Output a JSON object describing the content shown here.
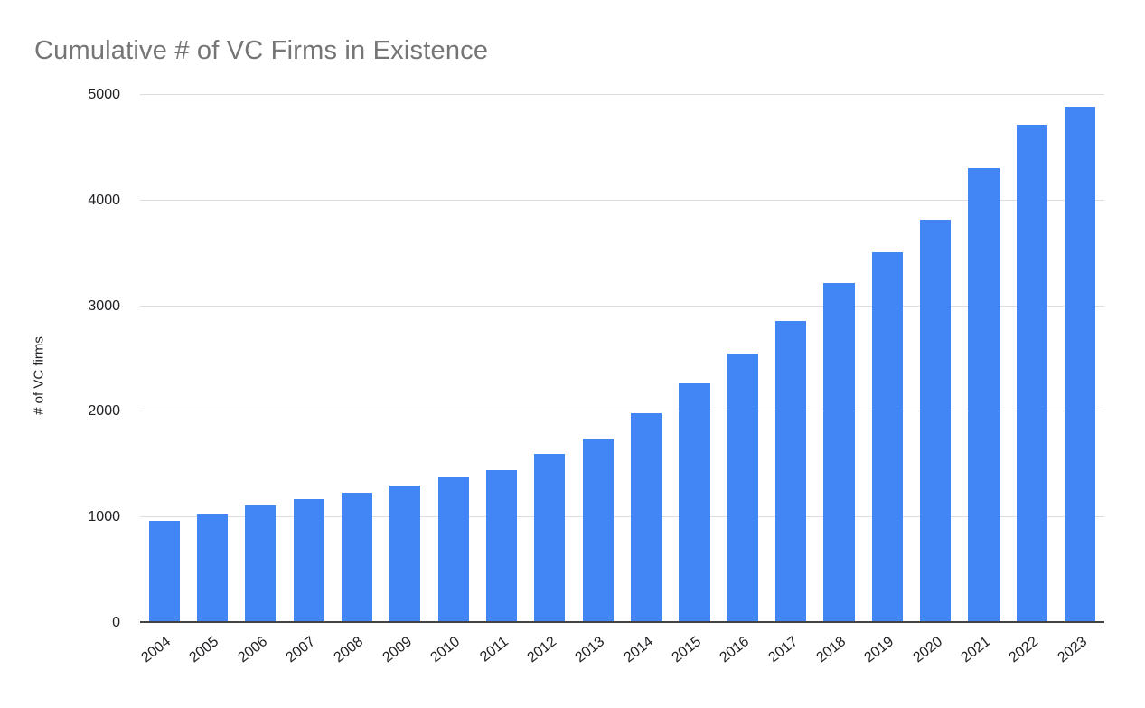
{
  "chart_data": {
    "type": "bar",
    "title": "Cumulative # of VC Firms in Existence",
    "xlabel": "",
    "ylabel": "# of VC firms",
    "categories": [
      "2004",
      "2005",
      "2006",
      "2007",
      "2008",
      "2009",
      "2010",
      "2011",
      "2012",
      "2013",
      "2014",
      "2015",
      "2016",
      "2017",
      "2018",
      "2019",
      "2020",
      "2021",
      "2022",
      "2023"
    ],
    "values": [
      970,
      1030,
      1110,
      1170,
      1230,
      1300,
      1380,
      1450,
      1600,
      1750,
      1990,
      2270,
      2550,
      2860,
      3220,
      3510,
      3820,
      4310,
      4720,
      4890
    ],
    "ylim": [
      0,
      5000
    ],
    "yticks": [
      0,
      1000,
      2000,
      3000,
      4000,
      5000
    ],
    "grid": true,
    "legend": "none",
    "colors": {
      "bar": "#4285f4",
      "title": "#757575",
      "gridline": "#dadce0",
      "axis": "#424242",
      "tick_text": "#202124"
    }
  }
}
